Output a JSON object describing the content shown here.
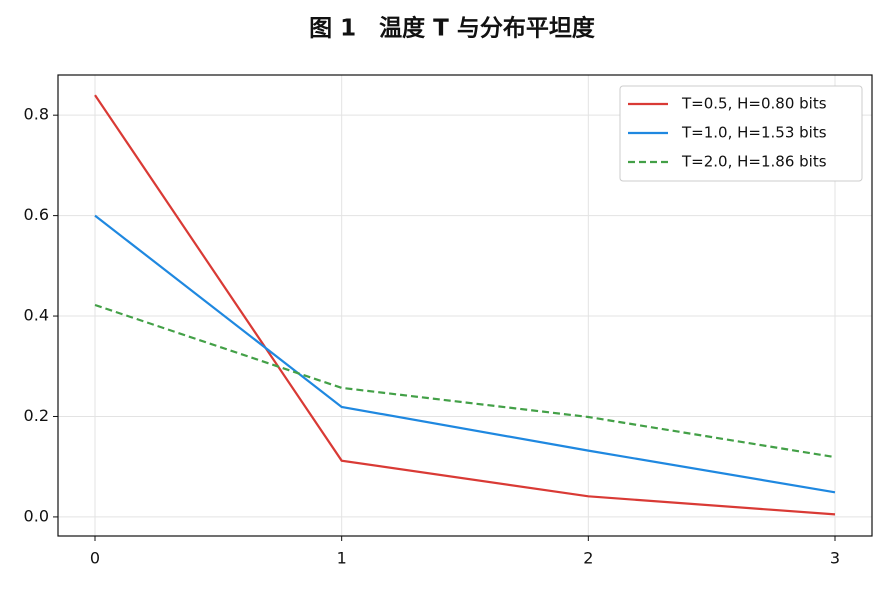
{
  "chart_data": {
    "type": "line",
    "title": "图 1　温度 T 与分布平坦度",
    "x": [
      0,
      1,
      2,
      3
    ],
    "series": [
      {
        "name": "T=0.5, H=0.80 bits",
        "color": "#d93a35",
        "linestyle": "solid",
        "values": [
          0.84,
          0.112,
          0.041,
          0.005
        ]
      },
      {
        "name": "T=1.0, H=1.53 bits",
        "color": "#1f88e0",
        "linestyle": "solid",
        "values": [
          0.6,
          0.219,
          0.132,
          0.049
        ]
      },
      {
        "name": "T=2.0, H=1.86 bits",
        "color": "#43a047",
        "linestyle": "dashed",
        "values": [
          0.422,
          0.257,
          0.199,
          0.119
        ]
      }
    ],
    "xlim": [
      -0.15,
      3.15
    ],
    "ylim": [
      -0.038,
      0.88
    ],
    "xticks": [
      0,
      1,
      2,
      3
    ],
    "yticks": [
      {
        "value": 0,
        "label": "0.0"
      },
      0.2,
      0.4,
      0.6,
      0.8
    ],
    "grid": true,
    "legend": "upper right"
  }
}
